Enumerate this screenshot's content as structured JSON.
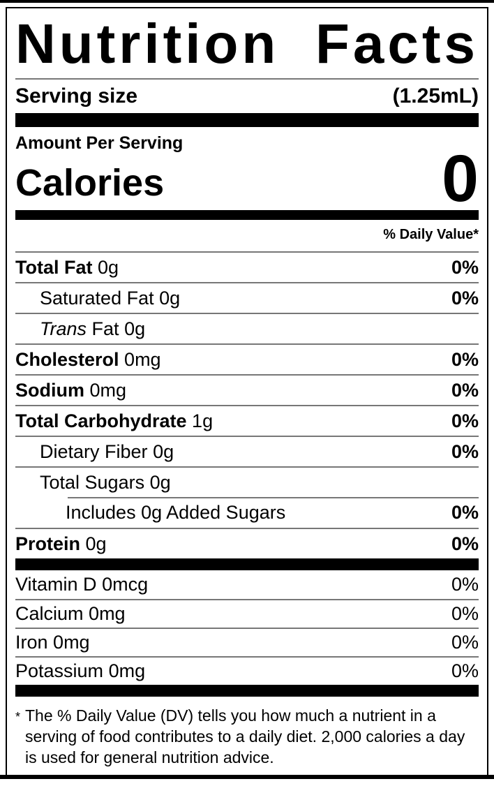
{
  "colors": {
    "text": "#000000",
    "background": "#ffffff",
    "thick_rule": "#000000",
    "hairline": "#777777"
  },
  "nutrition_label": {
    "title": "Nutrition Facts",
    "serving_size": {
      "label": "Serving size",
      "value": "(1.25mL)"
    },
    "amount_per_serving_label": "Amount Per Serving",
    "calories": {
      "label": "Calories",
      "value": "0"
    },
    "daily_value_header": "% Daily Value*",
    "rows": [
      {
        "name": "Total Fat",
        "amount": "0g",
        "pct": "0%"
      },
      {
        "name": "Saturated Fat",
        "amount": "0g",
        "pct": "0%"
      },
      {
        "name_italic": "Trans",
        "name": "Fat",
        "amount": "0g",
        "pct": ""
      },
      {
        "name": "Cholesterol",
        "amount": "0mg",
        "pct": "0%"
      },
      {
        "name": "Sodium",
        "amount": "0mg",
        "pct": "0%"
      },
      {
        "name": "Total Carbohydrate",
        "amount": "1g",
        "pct": "0%"
      },
      {
        "name": "Dietary Fiber",
        "amount": "0g",
        "pct": "0%"
      },
      {
        "name": "Total Sugars",
        "amount": "0g",
        "pct": ""
      },
      {
        "name": "Includes 0g Added Sugars",
        "amount": "",
        "pct": "0%"
      },
      {
        "name": "Protein",
        "amount": "0g",
        "pct": "0%"
      }
    ],
    "micronutrients": [
      {
        "name": "Vitamin D",
        "amount": "0mcg",
        "pct": "0%"
      },
      {
        "name": "Calcium",
        "amount": "0mg",
        "pct": "0%"
      },
      {
        "name": "Iron",
        "amount": "0mg",
        "pct": "0%"
      },
      {
        "name": "Potassium",
        "amount": "0mg",
        "pct": "0%"
      }
    ],
    "footnote": {
      "marker": "*",
      "text": "The % Daily Value (DV) tells you how much a nutrient in a serving of food contributes to a daily diet. 2,000 calories a day is used for general nutrition advice."
    }
  }
}
